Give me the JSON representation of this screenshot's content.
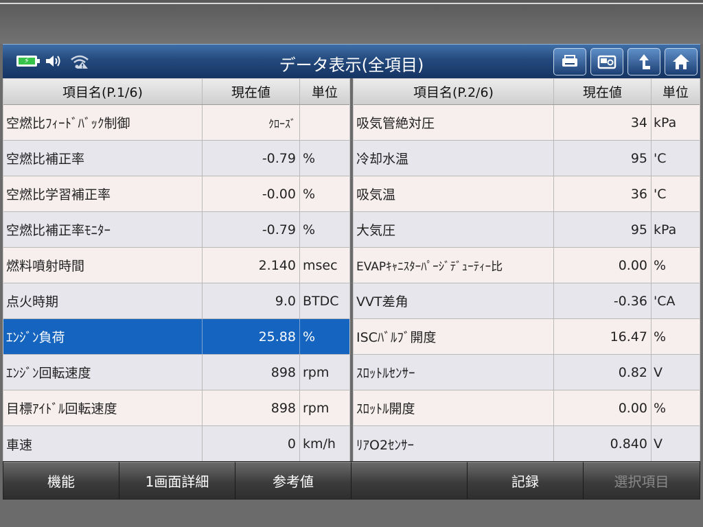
{
  "title": "データ表示(全項目)",
  "status": {
    "battery": "battery-icon",
    "sound": "speaker-icon",
    "signal": "wifi-warning-icon"
  },
  "nav": [
    "print-icon",
    "camera-icon",
    "back-arrow-icon",
    "home-icon"
  ],
  "left": {
    "headers": {
      "name": "項目名(P.1/6)",
      "value": "現在値",
      "unit": "単位"
    },
    "rows": [
      {
        "name": "空燃比ﾌｨｰﾄﾞﾊﾞｯｸ制御",
        "value": "ｸﾛｰｽﾞ",
        "unit": ""
      },
      {
        "name": "空燃比補正率",
        "value": "-0.79",
        "unit": "%"
      },
      {
        "name": "空燃比学習補正率",
        "value": "-0.00",
        "unit": "%"
      },
      {
        "name": "空燃比補正率ﾓﾆﾀｰ",
        "value": "-0.79",
        "unit": "%"
      },
      {
        "name": "燃料噴射時間",
        "value": "2.140",
        "unit": "msec"
      },
      {
        "name": "点火時期",
        "value": "9.0",
        "unit": "BTDC"
      },
      {
        "name": "ｴﾝｼﾞﾝ負荷",
        "value": "25.88",
        "unit": "%"
      },
      {
        "name": "ｴﾝｼﾞﾝ回転速度",
        "value": "898",
        "unit": "rpm"
      },
      {
        "name": "目標ｱｲﾄﾞﾙ回転速度",
        "value": "898",
        "unit": "rpm"
      },
      {
        "name": "車速",
        "value": "0",
        "unit": "km/h"
      }
    ]
  },
  "right": {
    "headers": {
      "name": "項目名(P.2/6)",
      "value": "現在値",
      "unit": "単位"
    },
    "rows": [
      {
        "name": "吸気管絶対圧",
        "value": "34",
        "unit": "kPa"
      },
      {
        "name": "冷却水温",
        "value": "95",
        "unit": "'C"
      },
      {
        "name": "吸気温",
        "value": "36",
        "unit": "'C"
      },
      {
        "name": "大気圧",
        "value": "95",
        "unit": "kPa"
      },
      {
        "name": "EVAPｷｬﾆｽﾀｰﾊﾟｰｼﾞﾃﾞｭｰﾃｨｰ比",
        "value": "0.00",
        "unit": "%"
      },
      {
        "name": "VVT差角",
        "value": "-0.36",
        "unit": "'CA"
      },
      {
        "name": "ISCﾊﾞﾙﾌﾞ開度",
        "value": "16.47",
        "unit": "%"
      },
      {
        "name": "ｽﾛｯﾄﾙｾﾝｻｰ",
        "value": "0.82",
        "unit": "V"
      },
      {
        "name": "ｽﾛｯﾄﾙ開度",
        "value": "0.00",
        "unit": "%"
      },
      {
        "name": "ﾘｱO2ｾﾝｻｰ",
        "value": "0.840",
        "unit": "V"
      }
    ]
  },
  "fnbar": [
    "機能",
    "1画面詳細",
    "参考値",
    "",
    "記録",
    "選択項目"
  ]
}
